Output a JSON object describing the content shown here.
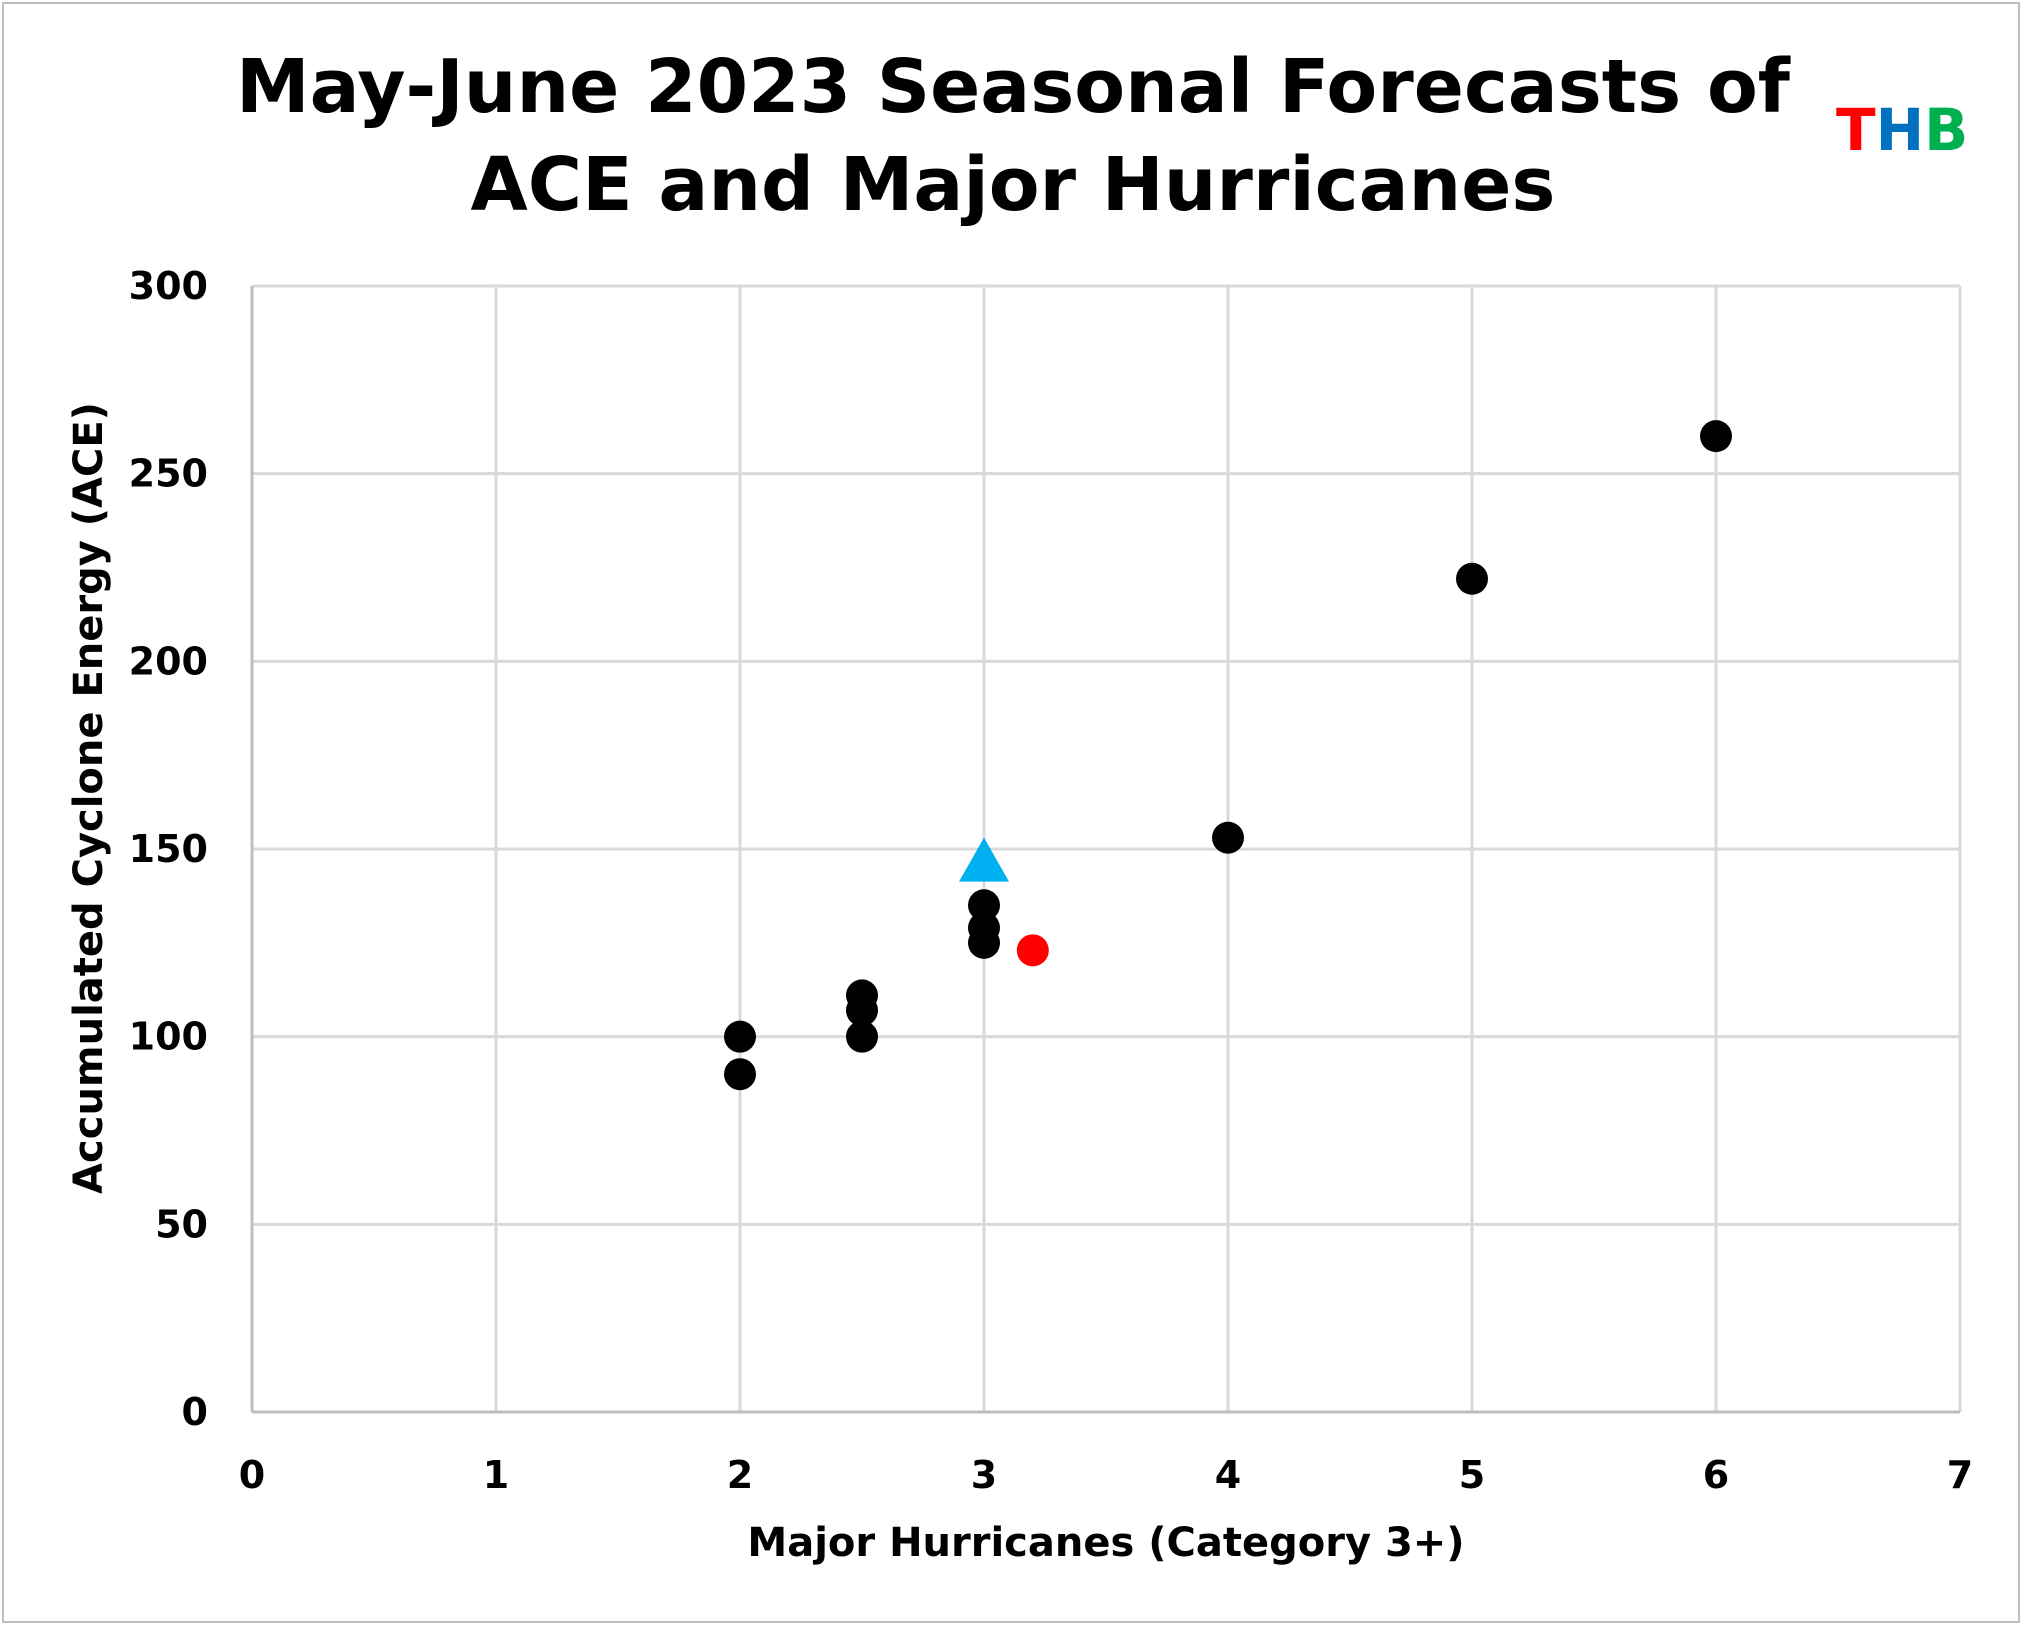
{
  "chart_data": {
    "type": "scatter",
    "title_lines": [
      "May-June 2023 Seasonal Forecasts of",
      "ACE and Major Hurricanes"
    ],
    "xlabel": "Major Hurricanes (Category 3+)",
    "ylabel": "Accumulated Cyclone Energy (ACE)",
    "xlim": [
      0,
      7
    ],
    "ylim": [
      0,
      300
    ],
    "xticks": [
      "0",
      "1",
      "2",
      "3",
      "4",
      "5",
      "6",
      "7"
    ],
    "yticks": [
      "0",
      "50",
      "100",
      "150",
      "200",
      "250",
      "300"
    ],
    "grid": true,
    "series": [
      {
        "marker": "circle",
        "color": "#000000",
        "points": [
          {
            "x": 2,
            "y": 100
          },
          {
            "x": 2,
            "y": 90
          },
          {
            "x": 2.5,
            "y": 111
          },
          {
            "x": 2.5,
            "y": 107
          },
          {
            "x": 2.5,
            "y": 100
          },
          {
            "x": 3,
            "y": 135
          },
          {
            "x": 3,
            "y": 129
          },
          {
            "x": 3,
            "y": 125
          },
          {
            "x": 4,
            "y": 153
          },
          {
            "x": 5,
            "y": 222
          },
          {
            "x": 6,
            "y": 260
          }
        ]
      },
      {
        "marker": "circle",
        "color": "#ff0000",
        "points": [
          {
            "x": 3.2,
            "y": 123
          }
        ]
      },
      {
        "marker": "triangle",
        "color": "#00b0f0",
        "points": [
          {
            "x": 3,
            "y": 146
          }
        ]
      }
    ]
  },
  "logo": {
    "letters": [
      {
        "char": "T",
        "color": "#ff0000"
      },
      {
        "char": "H",
        "color": "#0070c0"
      },
      {
        "char": "B",
        "color": "#00b050"
      }
    ]
  }
}
